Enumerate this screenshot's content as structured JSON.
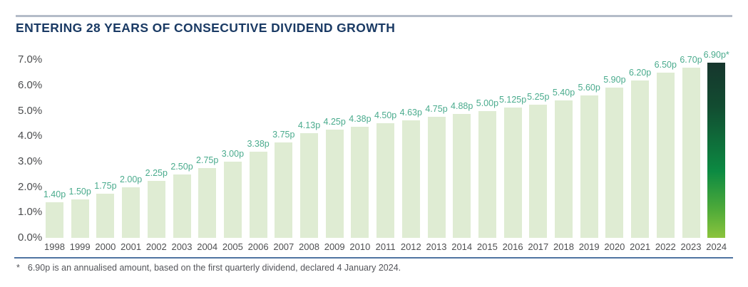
{
  "title": "ENTERING 28 YEARS OF CONSECUTIVE DIVIDEND GROWTH",
  "footnote": {
    "marker": "*",
    "text": "6.90p is an annualised amount, based on the first quarterly dividend, declared 4 January 2024."
  },
  "chart_data": {
    "type": "bar",
    "title": "ENTERING 28 YEARS OF CONSECUTIVE DIVIDEND GROWTH",
    "categories": [
      "1998",
      "1999",
      "2000",
      "2001",
      "2002",
      "2003",
      "2004",
      "2005",
      "2006",
      "2007",
      "2008",
      "2009",
      "2010",
      "2011",
      "2012",
      "2013",
      "2014",
      "2015",
      "2016",
      "2017",
      "2018",
      "2019",
      "2020",
      "2021",
      "2022",
      "2023",
      "2024"
    ],
    "values": [
      1.4,
      1.5,
      1.75,
      2.0,
      2.25,
      2.5,
      2.75,
      3.0,
      3.38,
      3.75,
      4.13,
      4.25,
      4.38,
      4.5,
      4.63,
      4.75,
      4.88,
      5.0,
      5.125,
      5.25,
      5.4,
      5.6,
      5.9,
      6.2,
      6.5,
      6.7,
      6.9
    ],
    "bar_labels": [
      "1.40p",
      "1.50p",
      "1.75p",
      "2.00p",
      "2.25p",
      "2.50p",
      "2.75p",
      "3.00p",
      "3.38p",
      "3.75p",
      "4.13p",
      "4.25p",
      "4.38p",
      "4.50p",
      "4.63p",
      "4.75p",
      "4.88p",
      "5.00p",
      "5.125p",
      "5.25p",
      "5.40p",
      "5.60p",
      "5.90p",
      "6.20p",
      "6.50p",
      "6.70p",
      "6.90p*"
    ],
    "y_tick_labels": [
      "7.0%",
      "6.0%",
      "5.0%",
      "4.0%",
      "3.0%",
      "2.0%",
      "1.0%",
      "0.0%"
    ],
    "y_tick_values": [
      7,
      6,
      5,
      4,
      3,
      2,
      1,
      0
    ],
    "ylim": [
      0,
      7
    ],
    "xlabel": "",
    "ylabel": "",
    "grid": false,
    "legend": false,
    "bar_color": "#dfecd3",
    "value_label_color": "#4aab8d",
    "highlight_category": "2024",
    "highlight_gradient": [
      "#16362d",
      "#0c8a42",
      "#8cc43d"
    ]
  }
}
